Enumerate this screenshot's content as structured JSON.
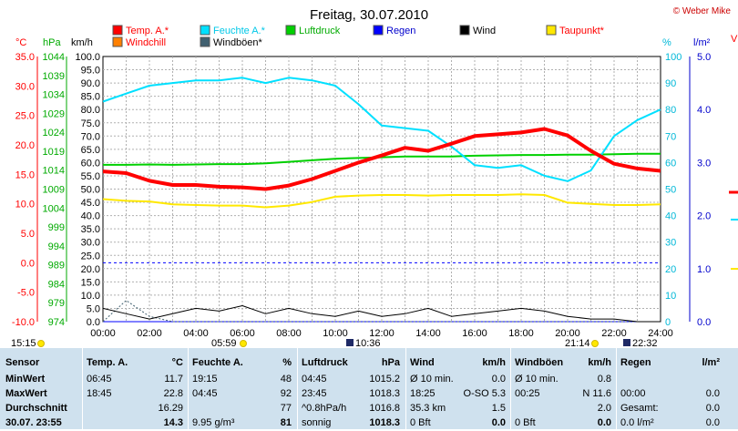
{
  "header": {
    "title": "Freitag, 30.07.2010",
    "copyright": "© Weber Mike",
    "col_edge": "V"
  },
  "legend": [
    {
      "label": "Temp. A.*",
      "color": "#ff0000"
    },
    {
      "label": "Feuchte A.*",
      "color": "#00e0ff"
    },
    {
      "label": "Luftdruck",
      "color": "#00d000"
    },
    {
      "label": "Regen",
      "color": "#0000ff"
    },
    {
      "label": "Wind",
      "color": "#000000"
    },
    {
      "label": "Taupunkt*",
      "color": "#ffe800"
    },
    {
      "label": "Windchill",
      "color": "#ff8000"
    },
    {
      "label": "Windböen*",
      "color": "#406070"
    }
  ],
  "axes": {
    "temp_unit": "°C",
    "pressure_unit": "hPa",
    "wind_unit": "km/h",
    "humidity_unit": "%",
    "rain_unit": "l/m²"
  },
  "sun_times": {
    "sunrise_left": "15:15",
    "sunrise": "05:59",
    "moon_rise": "10:36",
    "sunset": "21:14",
    "moon_set": "22:32"
  },
  "chart_data": {
    "type": "line",
    "title": "Freitag, 30.07.2010",
    "x": [
      "00:00",
      "01:00",
      "02:00",
      "03:00",
      "04:00",
      "05:00",
      "06:00",
      "07:00",
      "08:00",
      "09:00",
      "10:00",
      "11:00",
      "12:00",
      "13:00",
      "14:00",
      "15:00",
      "16:00",
      "17:00",
      "18:00",
      "19:00",
      "20:00",
      "21:00",
      "22:00",
      "23:00",
      "24:00"
    ],
    "x_ticks": [
      "00:00",
      "02:00",
      "04:00",
      "06:00",
      "08:00",
      "10:00",
      "12:00",
      "14:00",
      "16:00",
      "18:00",
      "20:00",
      "22:00",
      "24:00"
    ],
    "axes_ranges": {
      "temp_c": [
        -10,
        35
      ],
      "pressure_hpa": [
        974,
        1044
      ],
      "wind_kmh": [
        0,
        100
      ],
      "humidity_pct": [
        0,
        100
      ],
      "rain_lm2": [
        0,
        5
      ]
    },
    "y_ticks": {
      "temp_c": [
        "35.0",
        "30.0",
        "25.0",
        "20.0",
        "15.0",
        "10.0",
        "5.0",
        "0.0",
        "-5.0",
        "-10.0"
      ],
      "pressure_hpa": [
        "1044",
        "1039",
        "1034",
        "1029",
        "1024",
        "1019",
        "1014",
        "1009",
        "1004",
        "999",
        "994",
        "989",
        "984",
        "979",
        "974"
      ],
      "wind_kmh": [
        "100.0",
        "95.0",
        "90.0",
        "85.0",
        "80.0",
        "75.0",
        "70.0",
        "65.0",
        "60.0",
        "55.0",
        "50.0",
        "45.0",
        "40.0",
        "35.0",
        "30.0",
        "25.0",
        "20.0",
        "15.0",
        "10.0",
        "5.0",
        "0.0"
      ],
      "humidity_pct": [
        "100",
        "90",
        "80",
        "70",
        "60",
        "50",
        "40",
        "30",
        "20",
        "10",
        "0"
      ],
      "rain_lm2": [
        "5.0",
        "4.0",
        "3.0",
        "2.0",
        "1.0",
        "0.0"
      ]
    },
    "series": [
      {
        "name": "Temp. A.*",
        "axis": "temp_c",
        "color": "#ff0000",
        "values": [
          15.5,
          15.2,
          13.9,
          13.2,
          13.2,
          12.9,
          12.8,
          12.5,
          13.1,
          14.2,
          15.6,
          17.0,
          18.2,
          19.5,
          19.0,
          20.2,
          21.5,
          21.8,
          22.1,
          22.7,
          21.6,
          19.0,
          16.8,
          16.0,
          15.6
        ]
      },
      {
        "name": "Windchill",
        "axis": "temp_c",
        "color": "#ff8000",
        "values": [
          15.5,
          15.2,
          13.9,
          13.2,
          13.2,
          12.9,
          12.8,
          12.5,
          13.1,
          14.2,
          15.6,
          17.0,
          18.2,
          19.6,
          19.1,
          20.3,
          21.6,
          21.9,
          22.2,
          22.8,
          21.7,
          19.1,
          16.8,
          16.0,
          15.6
        ]
      },
      {
        "name": "Feuchte A.*",
        "axis": "humidity_pct",
        "color": "#00e0ff",
        "values": [
          83,
          86,
          89,
          90,
          91,
          91,
          92,
          90,
          92,
          91,
          89,
          82,
          74,
          73,
          72,
          66,
          59,
          58,
          59,
          55,
          53,
          57,
          70,
          76,
          80
        ]
      },
      {
        "name": "Luftdruck",
        "axis": "pressure_hpa",
        "color": "#00d000",
        "values": [
          1015.4,
          1015.4,
          1015.5,
          1015.4,
          1015.5,
          1015.6,
          1015.6,
          1015.8,
          1016.2,
          1016.6,
          1017.0,
          1017.2,
          1017.4,
          1017.6,
          1017.6,
          1017.6,
          1017.8,
          1017.9,
          1018.0,
          1018.0,
          1018.1,
          1018.1,
          1018.2,
          1018.3,
          1018.3
        ]
      },
      {
        "name": "Taupunkt*",
        "axis": "temp_c",
        "color": "#ffe800",
        "values": [
          10.8,
          10.5,
          10.4,
          9.9,
          9.8,
          9.7,
          9.7,
          9.4,
          9.7,
          10.3,
          11.2,
          11.4,
          11.5,
          11.5,
          11.4,
          11.5,
          11.5,
          11.5,
          11.6,
          11.5,
          10.2,
          10.0,
          9.8,
          9.8,
          9.9
        ]
      },
      {
        "name": "Wind",
        "axis": "wind_kmh",
        "color": "#000000",
        "values": [
          5,
          3,
          1,
          3,
          5,
          4,
          6,
          3,
          5,
          3,
          2,
          4,
          2,
          3,
          5,
          2,
          3,
          4,
          5,
          4,
          2,
          1,
          1,
          0,
          0
        ]
      },
      {
        "name": "Windböen*",
        "axis": "wind_kmh",
        "color": "#406070",
        "values": [
          0,
          8,
          2,
          0,
          0,
          0,
          0,
          0,
          0,
          0,
          0,
          0,
          0,
          0,
          0,
          0,
          0,
          0,
          0,
          0,
          0,
          0,
          0,
          0,
          0
        ]
      },
      {
        "name": "Regen",
        "axis": "rain_lm2",
        "color": "#0000ff",
        "values": [
          0,
          0,
          0,
          0,
          0,
          0,
          0,
          0,
          0,
          0,
          0,
          0,
          0,
          0,
          0,
          0,
          0,
          0,
          0,
          0,
          0,
          0,
          0,
          0,
          0
        ]
      }
    ],
    "reference_line": {
      "temp_c": 0.0,
      "color": "#0000ff"
    },
    "grid": true,
    "legend_position": "top"
  },
  "table": {
    "rows": [
      [
        "Sensor",
        "Temp. A.",
        "°C",
        "Feuchte A.",
        "%",
        "Luftdruck",
        "hPa",
        "Wind",
        "km/h",
        "Windböen",
        "km/h",
        "Regen",
        "l/m²"
      ],
      [
        "MinWert",
        "06:45",
        "11.7",
        "19:15",
        "48",
        "04:45",
        "1015.2",
        "Ø 10 min.",
        "0.0",
        "Ø 10 min.",
        "0.8",
        "",
        ""
      ],
      [
        "MaxWert",
        "18:45",
        "22.8",
        "04:45",
        "92",
        "23:45",
        "1018.3",
        "18:25",
        "O-SO 5.3",
        "00:25",
        "N 11.6",
        "00:00",
        "0.0"
      ],
      [
        "Durchschnitt",
        "",
        "16.29",
        "",
        "77",
        "^0.8hPa/h",
        "1016.8",
        "35.3 km",
        "1.5",
        "",
        "2.0",
        "Gesamt:",
        "0.0"
      ],
      [
        "30.07. 23:55",
        "",
        "14.3",
        "9.95 g/m³",
        "81",
        "sonnig",
        "1018.3",
        "0 Bft",
        "0.0",
        "0 Bft",
        "0.0",
        "0.0 l/m²",
        "0.0"
      ]
    ]
  }
}
